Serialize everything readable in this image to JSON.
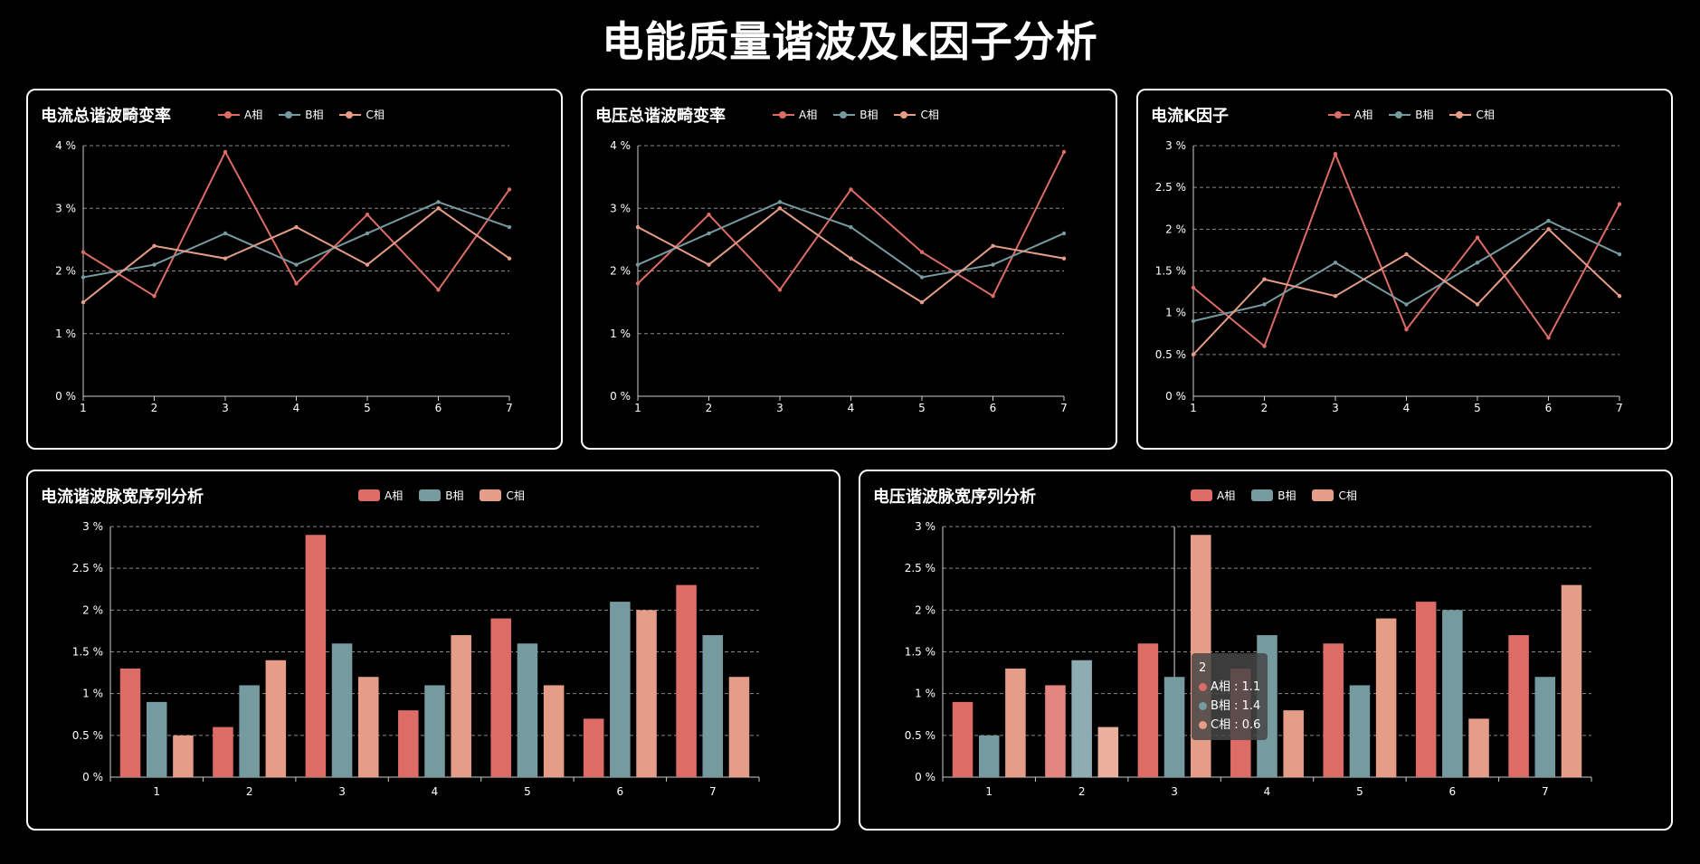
{
  "page": {
    "title": "电能质量谐波及k因子分析"
  },
  "colors": {
    "A": "#dd6b66",
    "B": "#759aa0",
    "C": "#e69d87",
    "grid": "#888888",
    "axis": "#cccccc"
  },
  "legend_labels": [
    "A相",
    "B相",
    "C相"
  ],
  "chart_data": [
    {
      "id": "current_thd",
      "type": "line",
      "title": "电流总谐波畸变率",
      "categories": [
        "1",
        "2",
        "3",
        "4",
        "5",
        "6",
        "7"
      ],
      "series": [
        {
          "name": "A相",
          "values": [
            2.3,
            1.6,
            3.9,
            1.8,
            2.9,
            1.7,
            3.3
          ]
        },
        {
          "name": "B相",
          "values": [
            1.9,
            2.1,
            2.6,
            2.1,
            2.6,
            3.1,
            2.7
          ]
        },
        {
          "name": "C相",
          "values": [
            1.5,
            2.4,
            2.2,
            2.7,
            2.1,
            3.0,
            2.2
          ]
        }
      ],
      "ylim": [
        0,
        4
      ],
      "yticks": [
        "0 %",
        "1 %",
        "2 %",
        "3 %",
        "4 %"
      ],
      "grid": true,
      "legend_position": "top-left"
    },
    {
      "id": "voltage_thd",
      "type": "line",
      "title": "电压总谐波畸变率",
      "categories": [
        "1",
        "2",
        "3",
        "4",
        "5",
        "6",
        "7"
      ],
      "series": [
        {
          "name": "A相",
          "values": [
            1.8,
            2.9,
            1.7,
            3.3,
            2.3,
            1.6,
            3.9
          ]
        },
        {
          "name": "B相",
          "values": [
            2.1,
            2.6,
            3.1,
            2.7,
            1.9,
            2.1,
            2.6
          ]
        },
        {
          "name": "C相",
          "values": [
            2.7,
            2.1,
            3.0,
            2.2,
            1.5,
            2.4,
            2.2
          ]
        }
      ],
      "ylim": [
        0,
        4
      ],
      "yticks": [
        "0 %",
        "1 %",
        "2 %",
        "3 %",
        "4 %"
      ],
      "grid": true,
      "legend_position": "top-left"
    },
    {
      "id": "current_k_factor",
      "type": "line",
      "title": "电流K因子",
      "categories": [
        "1",
        "2",
        "3",
        "4",
        "5",
        "6",
        "7"
      ],
      "series": [
        {
          "name": "A相",
          "values": [
            1.3,
            0.6,
            2.9,
            0.8,
            1.9,
            0.7,
            2.3
          ]
        },
        {
          "name": "B相",
          "values": [
            0.9,
            1.1,
            1.6,
            1.1,
            1.6,
            2.1,
            1.7
          ]
        },
        {
          "name": "C相",
          "values": [
            0.5,
            1.4,
            1.2,
            1.7,
            1.1,
            2.0,
            1.2
          ]
        }
      ],
      "ylim": [
        0,
        3
      ],
      "yticks": [
        "0 %",
        "0.5 %",
        "1 %",
        "1.5 %",
        "2 %",
        "2.5 %",
        "3 %"
      ],
      "grid": true,
      "legend_position": "top-left"
    },
    {
      "id": "current_pulse",
      "type": "bar",
      "title": "电流谐波脉宽序列分析",
      "categories": [
        "1",
        "2",
        "3",
        "4",
        "5",
        "6",
        "7"
      ],
      "series": [
        {
          "name": "A相",
          "values": [
            1.3,
            0.6,
            2.9,
            0.8,
            1.9,
            0.7,
            2.3
          ]
        },
        {
          "name": "B相",
          "values": [
            0.9,
            1.1,
            1.6,
            1.1,
            1.6,
            2.1,
            1.7
          ]
        },
        {
          "name": "C相",
          "values": [
            0.5,
            1.4,
            1.2,
            1.7,
            1.1,
            2.0,
            1.2
          ]
        }
      ],
      "ylim": [
        0,
        3
      ],
      "yticks": [
        "0 %",
        "0.5 %",
        "1 %",
        "1.5 %",
        "2 %",
        "2.5 %",
        "3 %"
      ],
      "grid": true,
      "legend_position": "top-center"
    },
    {
      "id": "voltage_pulse",
      "type": "bar",
      "title": "电压谐波脉宽序列分析",
      "categories": [
        "1",
        "2",
        "3",
        "4",
        "5",
        "6",
        "7"
      ],
      "series": [
        {
          "name": "A相",
          "values": [
            0.9,
            1.1,
            1.6,
            1.3,
            1.6,
            2.1,
            1.7
          ]
        },
        {
          "name": "B相",
          "values": [
            0.5,
            1.4,
            1.2,
            1.7,
            1.1,
            2.0,
            1.2
          ]
        },
        {
          "name": "C相",
          "values": [
            1.3,
            0.6,
            2.9,
            0.8,
            1.9,
            0.7,
            2.3
          ]
        }
      ],
      "ylim": [
        0,
        3
      ],
      "yticks": [
        "0 %",
        "0.5 %",
        "1 %",
        "1.5 %",
        "2 %",
        "2.5 %",
        "3 %"
      ],
      "grid": true,
      "legend_position": "top-center",
      "highlight_index": 1,
      "pointer_index": 2,
      "tooltip": {
        "title": "2",
        "rows": [
          {
            "label": "A相 : 1.1"
          },
          {
            "label": "B相 : 1.4"
          },
          {
            "label": "C相 : 0.6"
          }
        ]
      }
    }
  ]
}
